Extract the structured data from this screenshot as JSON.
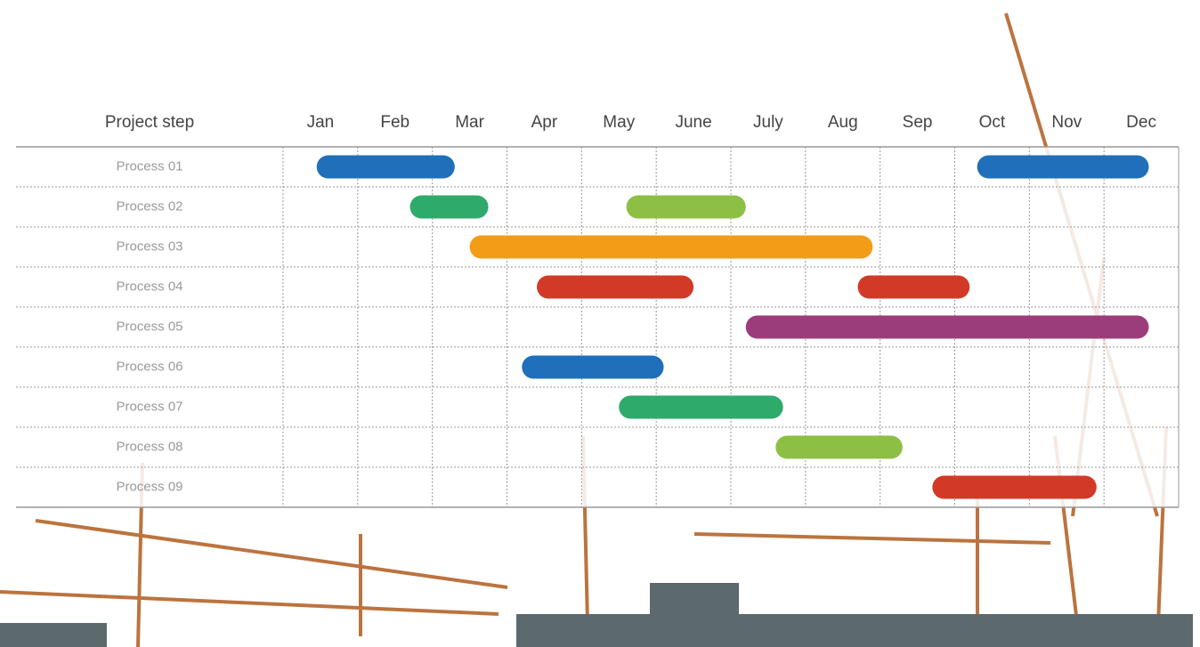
{
  "chart_data": {
    "type": "gantt",
    "row_header": "Project step",
    "xlim": [
      0,
      12
    ],
    "xticks": [
      {
        "value": 0.5,
        "label": "Jan"
      },
      {
        "value": 1.5,
        "label": "Feb"
      },
      {
        "value": 2.5,
        "label": "Mar"
      },
      {
        "value": 3.5,
        "label": "Apr"
      },
      {
        "value": 4.5,
        "label": "May"
      },
      {
        "value": 5.5,
        "label": "June"
      },
      {
        "value": 6.5,
        "label": "July"
      },
      {
        "value": 7.5,
        "label": "Aug"
      },
      {
        "value": 8.5,
        "label": "Sep"
      },
      {
        "value": 9.5,
        "label": "Oct"
      },
      {
        "value": 10.5,
        "label": "Nov"
      },
      {
        "value": 11.5,
        "label": "Dec"
      }
    ],
    "tasks": [
      {
        "name": "Process 01",
        "bars": [
          {
            "start": 0.45,
            "end": 2.3,
            "color": "#1f6fba"
          },
          {
            "start": 9.3,
            "end": 11.6,
            "color": "#1f6fba"
          }
        ]
      },
      {
        "name": "Process 02",
        "bars": [
          {
            "start": 1.7,
            "end": 2.75,
            "color": "#2eaa6a"
          },
          {
            "start": 4.6,
            "end": 6.2,
            "color": "#8dbf45"
          }
        ]
      },
      {
        "name": "Process 03",
        "bars": [
          {
            "start": 2.5,
            "end": 7.9,
            "color": "#f39c18"
          }
        ]
      },
      {
        "name": "Process 04",
        "bars": [
          {
            "start": 3.4,
            "end": 5.5,
            "color": "#d23a27"
          },
          {
            "start": 7.7,
            "end": 9.2,
            "color": "#d23a27"
          }
        ]
      },
      {
        "name": "Process 05",
        "bars": [
          {
            "start": 6.2,
            "end": 11.6,
            "color": "#9b3d7a"
          }
        ]
      },
      {
        "name": "Process 06",
        "bars": [
          {
            "start": 3.2,
            "end": 5.1,
            "color": "#1f6fba"
          }
        ]
      },
      {
        "name": "Process 07",
        "bars": [
          {
            "start": 4.5,
            "end": 6.7,
            "color": "#2eaa6a"
          }
        ]
      },
      {
        "name": "Process 08",
        "bars": [
          {
            "start": 6.6,
            "end": 8.3,
            "color": "#8dbf45"
          }
        ]
      },
      {
        "name": "Process 09",
        "bars": [
          {
            "start": 8.7,
            "end": 10.9,
            "color": "#d23a27"
          }
        ]
      }
    ]
  }
}
